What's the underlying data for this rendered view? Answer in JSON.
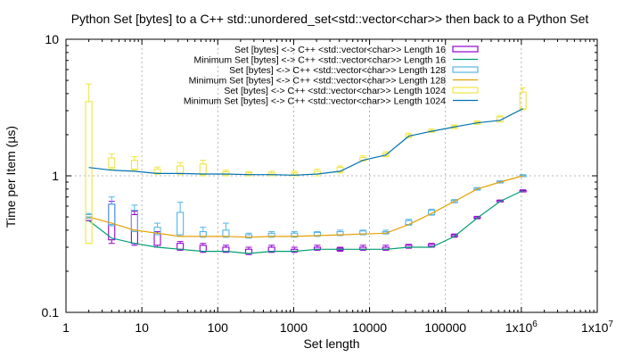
{
  "chart_data": {
    "type": "line",
    "title": "Python Set [bytes] to a C++ std::unordered_set<std::vector<char>> then back to a Python Set",
    "xlabel": "Set length",
    "ylabel": "Time per Item (µs)",
    "x_scale": "log",
    "y_scale": "log",
    "xlim": [
      1,
      10000000
    ],
    "ylim": [
      0.1,
      10
    ],
    "x_ticks": [
      {
        "value": 1,
        "label": "1"
      },
      {
        "value": 10,
        "label": "10"
      },
      {
        "value": 100,
        "label": "100"
      },
      {
        "value": 1000,
        "label": "1000"
      },
      {
        "value": 10000,
        "label": "10000"
      },
      {
        "value": 100000,
        "label": "100000"
      },
      {
        "value": 1000000,
        "label": "1x10",
        "sup": "6"
      },
      {
        "value": 10000000,
        "label": "1x10",
        "sup": "7"
      }
    ],
    "y_ticks": [
      {
        "value": 0.1,
        "label": "0.1"
      },
      {
        "value": 1,
        "label": "1"
      },
      {
        "value": 10,
        "label": "10"
      }
    ],
    "grid": true,
    "legend_position": "top-right",
    "x": [
      2,
      4,
      8,
      16,
      32,
      64,
      128,
      256,
      512,
      1024,
      2048,
      4096,
      8192,
      16384,
      32768,
      65536,
      131072,
      262144,
      524288,
      1048576
    ],
    "series": [
      {
        "name": "Set [bytes] <-> C++ <std::vector<char>> Length 16",
        "style": "box",
        "color": "#9400d3",
        "box_low": [
          0.47,
          0.34,
          0.32,
          0.31,
          0.29,
          0.28,
          0.28,
          0.27,
          0.28,
          0.28,
          0.29,
          0.285,
          0.29,
          0.29,
          0.3,
          0.305,
          0.36,
          0.49,
          0.65,
          0.77
        ],
        "box_high": [
          0.5,
          0.62,
          0.52,
          0.38,
          0.32,
          0.31,
          0.3,
          0.29,
          0.3,
          0.29,
          0.3,
          0.295,
          0.3,
          0.3,
          0.31,
          0.315,
          0.37,
          0.5,
          0.66,
          0.78
        ],
        "whisker_low": [
          0.47,
          0.32,
          0.31,
          0.3,
          0.285,
          0.275,
          0.275,
          0.265,
          0.275,
          0.275,
          0.285,
          0.28,
          0.285,
          0.285,
          0.295,
          0.3,
          0.355,
          0.485,
          0.645,
          0.765
        ],
        "whisker_high": [
          0.5,
          0.65,
          0.55,
          0.39,
          0.33,
          0.32,
          0.31,
          0.3,
          0.31,
          0.3,
          0.31,
          0.3,
          0.31,
          0.31,
          0.315,
          0.32,
          0.375,
          0.505,
          0.665,
          0.79
        ]
      },
      {
        "name": "Minimum Set [bytes] <-> C++ <std::vector<char>> Length 16",
        "style": "line",
        "color": "#009e73",
        "values": [
          0.47,
          0.35,
          0.32,
          0.3,
          0.29,
          0.28,
          0.28,
          0.27,
          0.28,
          0.28,
          0.29,
          0.29,
          0.29,
          0.29,
          0.3,
          0.3,
          0.36,
          0.49,
          0.65,
          0.78
        ]
      },
      {
        "name": "Set [bytes] <-> C++ <std::vector<char>> Length 128",
        "style": "box",
        "color": "#56b4e9",
        "box_low": [
          0.5,
          0.44,
          0.4,
          0.38,
          0.37,
          0.36,
          0.36,
          0.355,
          0.36,
          0.36,
          0.365,
          0.37,
          0.375,
          0.38,
          0.44,
          0.52,
          0.64,
          0.79,
          0.89,
          0.99
        ],
        "box_high": [
          0.52,
          0.62,
          0.56,
          0.42,
          0.54,
          0.39,
          0.4,
          0.37,
          0.38,
          0.38,
          0.385,
          0.39,
          0.395,
          0.39,
          0.47,
          0.56,
          0.66,
          0.81,
          0.91,
          1.01
        ],
        "whisker_low": [
          0.49,
          0.43,
          0.39,
          0.37,
          0.36,
          0.355,
          0.355,
          0.35,
          0.355,
          0.355,
          0.36,
          0.365,
          0.37,
          0.375,
          0.435,
          0.515,
          0.635,
          0.785,
          0.885,
          0.985
        ],
        "whisker_high": [
          0.53,
          0.7,
          0.61,
          0.45,
          0.64,
          0.42,
          0.45,
          0.38,
          0.39,
          0.39,
          0.39,
          0.4,
          0.4,
          0.4,
          0.48,
          0.57,
          0.67,
          0.82,
          0.92,
          1.02
        ]
      },
      {
        "name": "Minimum Set [bytes] <-> C++ <std::vector<char>> Length 128",
        "style": "line",
        "color": "#e69f00",
        "values": [
          0.5,
          0.45,
          0.4,
          0.38,
          0.36,
          0.36,
          0.36,
          0.355,
          0.36,
          0.36,
          0.365,
          0.37,
          0.375,
          0.38,
          0.44,
          0.53,
          0.65,
          0.8,
          0.9,
          1.0
        ]
      },
      {
        "name": "Set [bytes] <-> C++ <std::vector<char>> Length 1024",
        "style": "box",
        "color": "#f0e442",
        "box_low": [
          0.32,
          1.15,
          1.12,
          1.05,
          1.04,
          1.02,
          1.02,
          1.02,
          1.02,
          1.02,
          1.03,
          1.07,
          1.3,
          1.4,
          1.92,
          2.1,
          2.25,
          2.4,
          2.5,
          3.1
        ],
        "box_high": [
          3.5,
          1.35,
          1.3,
          1.12,
          1.18,
          1.22,
          1.07,
          1.05,
          1.05,
          1.05,
          1.08,
          1.15,
          1.36,
          1.46,
          2.0,
          2.15,
          2.32,
          2.48,
          2.7,
          4.1
        ],
        "whisker_low": [
          0.32,
          1.12,
          1.1,
          1.03,
          1.02,
          1.0,
          1.0,
          1.0,
          1.0,
          1.0,
          1.0,
          1.05,
          1.28,
          1.38,
          1.9,
          2.08,
          2.22,
          2.38,
          2.48,
          3.05
        ],
        "whisker_high": [
          4.7,
          1.45,
          1.38,
          1.16,
          1.25,
          1.3,
          1.1,
          1.07,
          1.08,
          1.08,
          1.12,
          1.18,
          1.4,
          1.5,
          2.05,
          2.2,
          2.36,
          2.52,
          2.75,
          4.4
        ]
      },
      {
        "name": "Minimum Set [bytes] <-> C++ <std::vector<char>> Length 1024",
        "style": "line",
        "color": "#0072b2",
        "values": [
          1.15,
          1.1,
          1.08,
          1.04,
          1.04,
          1.03,
          1.03,
          1.02,
          1.02,
          1.01,
          1.03,
          1.08,
          1.3,
          1.42,
          1.95,
          2.12,
          2.28,
          2.44,
          2.55,
          3.1
        ]
      }
    ]
  }
}
